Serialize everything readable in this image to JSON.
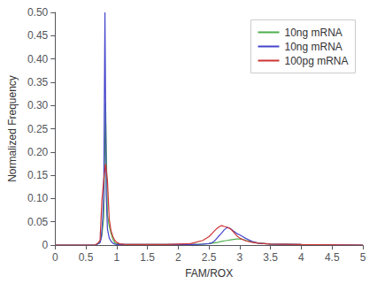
{
  "chart_data": {
    "type": "line",
    "xlabel": "FAM/ROX",
    "ylabel": "Normalized Frequency",
    "xlim": [
      0,
      5
    ],
    "ylim": [
      0,
      0.5
    ],
    "xticks": [
      0,
      0.5,
      1,
      1.5,
      2,
      2.5,
      3,
      3.5,
      4,
      4.5,
      5
    ],
    "yticks": [
      0,
      0.05,
      {
        "value": 0.1,
        "label": "0.10"
      },
      0.15,
      {
        "value": 0.2,
        "label": "0.20"
      },
      0.25,
      {
        "value": 0.3,
        "label": "0.30"
      },
      0.35,
      {
        "value": 0.4,
        "label": "0.40"
      },
      0.45,
      {
        "value": 0.5,
        "label": "0.50"
      }
    ],
    "grid": false,
    "legend": "upper right",
    "series": [
      {
        "name": "10ng mRNA",
        "color": "#4daf4a",
        "x": [
          0.0,
          0.65,
          0.7,
          0.73,
          0.76,
          0.79,
          0.82,
          0.85,
          0.88,
          0.91,
          0.94,
          0.97,
          1.0,
          1.05,
          1.1,
          1.15,
          1.2,
          1.3,
          1.5,
          1.8,
          2.0,
          2.2,
          2.4,
          2.5,
          2.55,
          2.6,
          2.65,
          2.7,
          2.75,
          2.8,
          2.85,
          2.9,
          2.95,
          3.0,
          3.05,
          3.1,
          3.2,
          3.3,
          3.5,
          4.0,
          5.0
        ],
        "values": [
          0.0,
          0.0,
          0.003,
          0.008,
          0.02,
          0.06,
          0.305,
          0.065,
          0.04,
          0.025,
          0.012,
          0.005,
          0.003,
          0.002,
          0.001,
          0.001,
          0.001,
          0.001,
          0.001,
          0.001,
          0.001,
          0.001,
          0.002,
          0.003,
          0.004,
          0.005,
          0.006,
          0.008,
          0.009,
          0.01,
          0.011,
          0.012,
          0.013,
          0.013,
          0.012,
          0.01,
          0.007,
          0.004,
          0.002,
          0.001,
          0.0
        ]
      },
      {
        "name": "10ng mRNA",
        "color": "#4444cc",
        "x": [
          0.0,
          0.65,
          0.7,
          0.73,
          0.75,
          0.77,
          0.79,
          0.81,
          0.83,
          0.85,
          0.88,
          0.91,
          0.94,
          0.97,
          1.0,
          1.03,
          1.06,
          1.1,
          1.2,
          1.4,
          1.6,
          1.8,
          2.0,
          2.3,
          2.5,
          2.55,
          2.6,
          2.65,
          2.7,
          2.75,
          2.8,
          2.85,
          2.9,
          2.95,
          3.0,
          3.05,
          3.1,
          3.2,
          3.3,
          3.5,
          4.0,
          5.0
        ],
        "values": [
          0.0,
          0.0,
          0.003,
          0.005,
          0.015,
          0.05,
          0.105,
          0.5,
          0.11,
          0.035,
          0.015,
          0.008,
          0.004,
          0.002,
          0.001,
          0.001,
          0.001,
          0.001,
          0.001,
          0.001,
          0.001,
          0.001,
          0.001,
          0.001,
          0.003,
          0.005,
          0.01,
          0.018,
          0.025,
          0.033,
          0.038,
          0.035,
          0.03,
          0.025,
          0.022,
          0.018,
          0.014,
          0.008,
          0.004,
          0.002,
          0.001,
          0.0
        ]
      },
      {
        "name": "100pg mRNA",
        "color": "#cc3333",
        "x": [
          0.0,
          0.65,
          0.7,
          0.73,
          0.76,
          0.79,
          0.82,
          0.85,
          0.88,
          0.91,
          0.94,
          0.97,
          1.0,
          1.03,
          1.06,
          1.1,
          1.15,
          1.2,
          1.4,
          1.6,
          1.8,
          2.0,
          2.2,
          2.4,
          2.5,
          2.55,
          2.6,
          2.65,
          2.7,
          2.75,
          2.8,
          2.85,
          2.9,
          2.95,
          3.0,
          3.05,
          3.1,
          3.2,
          3.3,
          3.5,
          4.0,
          5.0
        ],
        "values": [
          0.0,
          0.0,
          0.005,
          0.01,
          0.095,
          0.14,
          0.175,
          0.14,
          0.055,
          0.03,
          0.018,
          0.01,
          0.006,
          0.004,
          0.002,
          0.002,
          0.001,
          0.001,
          0.001,
          0.001,
          0.001,
          0.002,
          0.003,
          0.01,
          0.018,
          0.025,
          0.032,
          0.038,
          0.042,
          0.04,
          0.038,
          0.035,
          0.028,
          0.02,
          0.015,
          0.012,
          0.009,
          0.006,
          0.004,
          0.002,
          0.001,
          0.0
        ]
      }
    ]
  }
}
